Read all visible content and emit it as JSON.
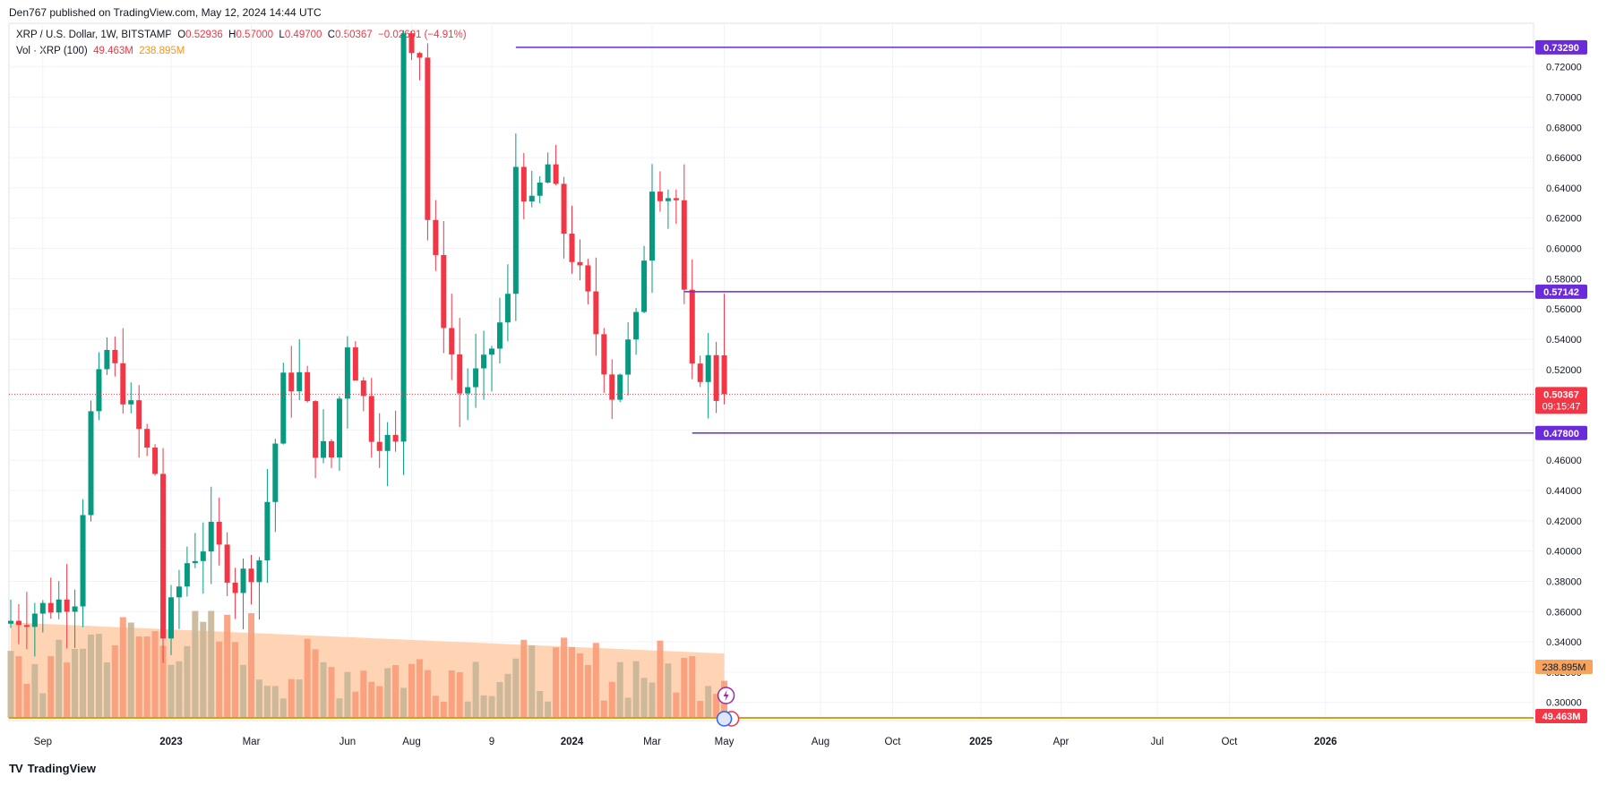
{
  "header": {
    "published": "Den767 published on TradingView.com, May 12, 2024 14:44 UTC"
  },
  "legend": {
    "symbol": "XRP / U.S. Dollar, 1W, BITSTAMP",
    "o_label": "O",
    "o": "0.52936",
    "h_label": "H",
    "h": "0.57000",
    "l_label": "L",
    "l": "0.49700",
    "c_label": "C",
    "c": "0.50367",
    "change": "−0.02601 (−4.91%)",
    "vol_label": "Vol · XRP (100)",
    "vol_value": "49.463M",
    "vol_ma": "238.895M"
  },
  "footer": {
    "logo": "TV",
    "brand": "TradingView"
  },
  "colors": {
    "up": "#089981",
    "down": "#f23645",
    "level_line": "#6a2bd9",
    "ma_area": "#ffcca8",
    "vol_up": "#c9b597",
    "vol_down": "#fa9c79",
    "price_line": "#f23645"
  },
  "chart_data": {
    "type": "candlestick",
    "symbol": "XRP / U.S. Dollar",
    "interval": "1W",
    "exchange": "BITSTAMP",
    "y_range": [
      0.288,
      0.7488
    ],
    "y_ticks": [
      0.3,
      0.32,
      0.34,
      0.36,
      0.38,
      0.4,
      0.42,
      0.44,
      0.46,
      0.48,
      0.5,
      0.52,
      0.54,
      0.56,
      0.58,
      0.6,
      0.62,
      0.64,
      0.66,
      0.68,
      0.7,
      0.72
    ],
    "y_tick_labels": [
      "0.30000",
      "0.32000",
      "0.34000",
      "0.36000",
      "0.38000",
      "0.40000",
      "0.42000",
      "0.44000",
      "0.46000",
      "0.48000",
      "0.50000",
      "0.52000",
      "0.54000",
      "0.56000",
      "0.58000",
      "0.60000",
      "0.62000",
      "0.64000",
      "0.66000",
      "0.68000",
      "0.70000",
      "0.72000"
    ],
    "x_ticks": [
      "Sep",
      "2023",
      "Mar",
      "Jun",
      "Aug",
      "9",
      "2024",
      "Mar",
      "May",
      "Aug",
      "Oct",
      "2025",
      "Apr",
      "Jul",
      "Oct",
      "2026"
    ],
    "x_tick_bold": [
      false,
      true,
      false,
      false,
      false,
      false,
      true,
      false,
      false,
      false,
      false,
      true,
      false,
      false,
      false,
      true
    ],
    "x_tick_date_index": [
      4,
      20,
      30,
      42,
      50,
      60,
      70,
      80,
      89,
      101,
      110,
      121,
      131,
      143,
      152,
      164
    ],
    "candles": [
      {
        "o": 0.352,
        "h": 0.376,
        "l": 0.344,
        "c": 0.365
      },
      {
        "o": 0.365,
        "h": 0.388,
        "l": 0.35,
        "c": 0.381
      },
      {
        "o": 0.381,
        "h": 0.401,
        "l": 0.372,
        "c": 0.384
      },
      {
        "o": 0.384,
        "h": 0.41,
        "l": 0.356,
        "c": 0.366
      },
      {
        "o": 0.366,
        "h": 0.384,
        "l": 0.36,
        "c": 0.38
      },
      {
        "o": 0.38,
        "h": 0.387,
        "l": 0.366,
        "c": 0.378
      },
      {
        "o": 0.378,
        "h": 0.386,
        "l": 0.361,
        "c": 0.363
      },
      {
        "o": 0.363,
        "h": 0.374,
        "l": 0.338,
        "c": 0.34
      },
      {
        "o": 0.34,
        "h": 0.36,
        "l": 0.331,
        "c": 0.346
      },
      {
        "o": 0.346,
        "h": 0.375,
        "l": 0.333,
        "c": 0.365
      },
      {
        "o": 0.365,
        "h": 0.382,
        "l": 0.358,
        "c": 0.371
      },
      {
        "o": 0.371,
        "h": 0.56,
        "l": 0.365,
        "c": 0.489
      },
      {
        "o": 0.489,
        "h": 0.502,
        "l": 0.45,
        "c": 0.46
      },
      {
        "o": 0.46,
        "h": 0.55,
        "l": 0.445,
        "c": 0.532
      },
      {
        "o": 0.532,
        "h": 0.537,
        "l": 0.448,
        "c": 0.471
      },
      {
        "o": 0.471,
        "h": 0.482,
        "l": 0.428,
        "c": 0.464
      },
      {
        "o": 0.464,
        "h": 0.478,
        "l": 0.445,
        "c": 0.455
      },
      {
        "o": 0.455,
        "h": 0.485,
        "l": 0.447,
        "c": 0.467
      },
      {
        "o": 0.467,
        "h": 0.472,
        "l": 0.435,
        "c": 0.452
      },
      {
        "o": 0.452,
        "h": 0.47,
        "l": 0.432,
        "c": 0.448
      },
      {
        "o": 0.448,
        "h": 0.458,
        "l": 0.339,
        "c": 0.344
      },
      {
        "o": 0.344,
        "h": 0.365,
        "l": 0.331,
        "c": 0.361
      },
      {
        "o": 0.361,
        "h": 0.374,
        "l": 0.339,
        "c": 0.354
      },
      {
        "o": 0.354,
        "h": 0.398,
        "l": 0.346,
        "c": 0.393
      }
    ],
    "volume_ma": 238.895,
    "volume_last": 49.463,
    "last_price": 0.50367,
    "countdown": "09:15:47",
    "horizontal_levels": [
      0.7329,
      0.57142,
      0.478
    ],
    "level_labels": [
      "0.73290",
      "0.57142",
      "0.47800"
    ],
    "price_label": "0.50367",
    "vol_ma_label": "238.895M",
    "vol_label": "49.463M"
  }
}
